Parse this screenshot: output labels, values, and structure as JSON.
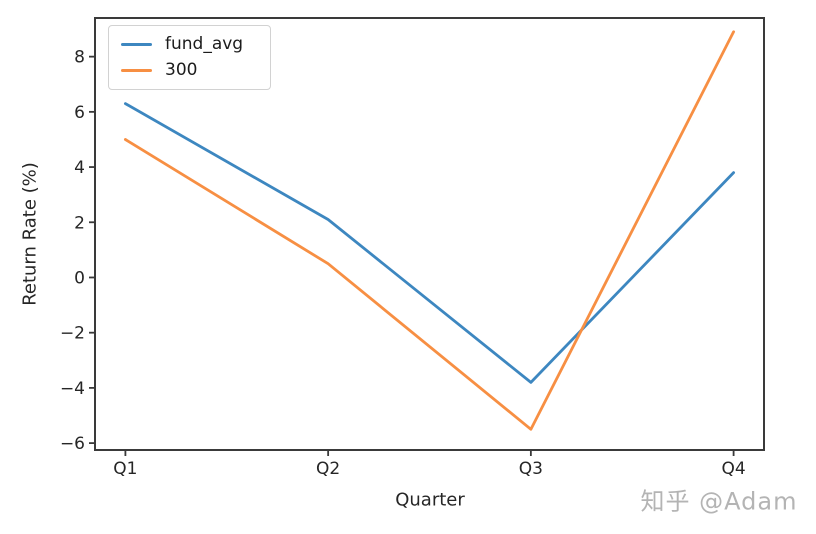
{
  "chart_data": {
    "type": "line",
    "title": "",
    "xlabel": "Quarter",
    "ylabel": "Return Rate (%)",
    "categories": [
      "Q1",
      "Q2",
      "Q3",
      "Q4"
    ],
    "series": [
      {
        "name": "fund_avg",
        "color": "#3d87c0",
        "values": [
          6.3,
          2.1,
          -3.8,
          3.8
        ]
      },
      {
        "name": "300",
        "color": "#f78f43",
        "values": [
          5.0,
          0.5,
          -5.5,
          8.9
        ]
      }
    ],
    "yticks": [
      -6,
      -4,
      -2,
      0,
      2,
      4,
      6,
      8
    ],
    "ylim": [
      -6.25,
      9.4
    ],
    "grid": false,
    "legend_position": "upper left",
    "axis_color": "#3a3a3a",
    "tick_label_color": "#262626"
  },
  "watermark": {
    "text": "知乎 @Adam"
  }
}
